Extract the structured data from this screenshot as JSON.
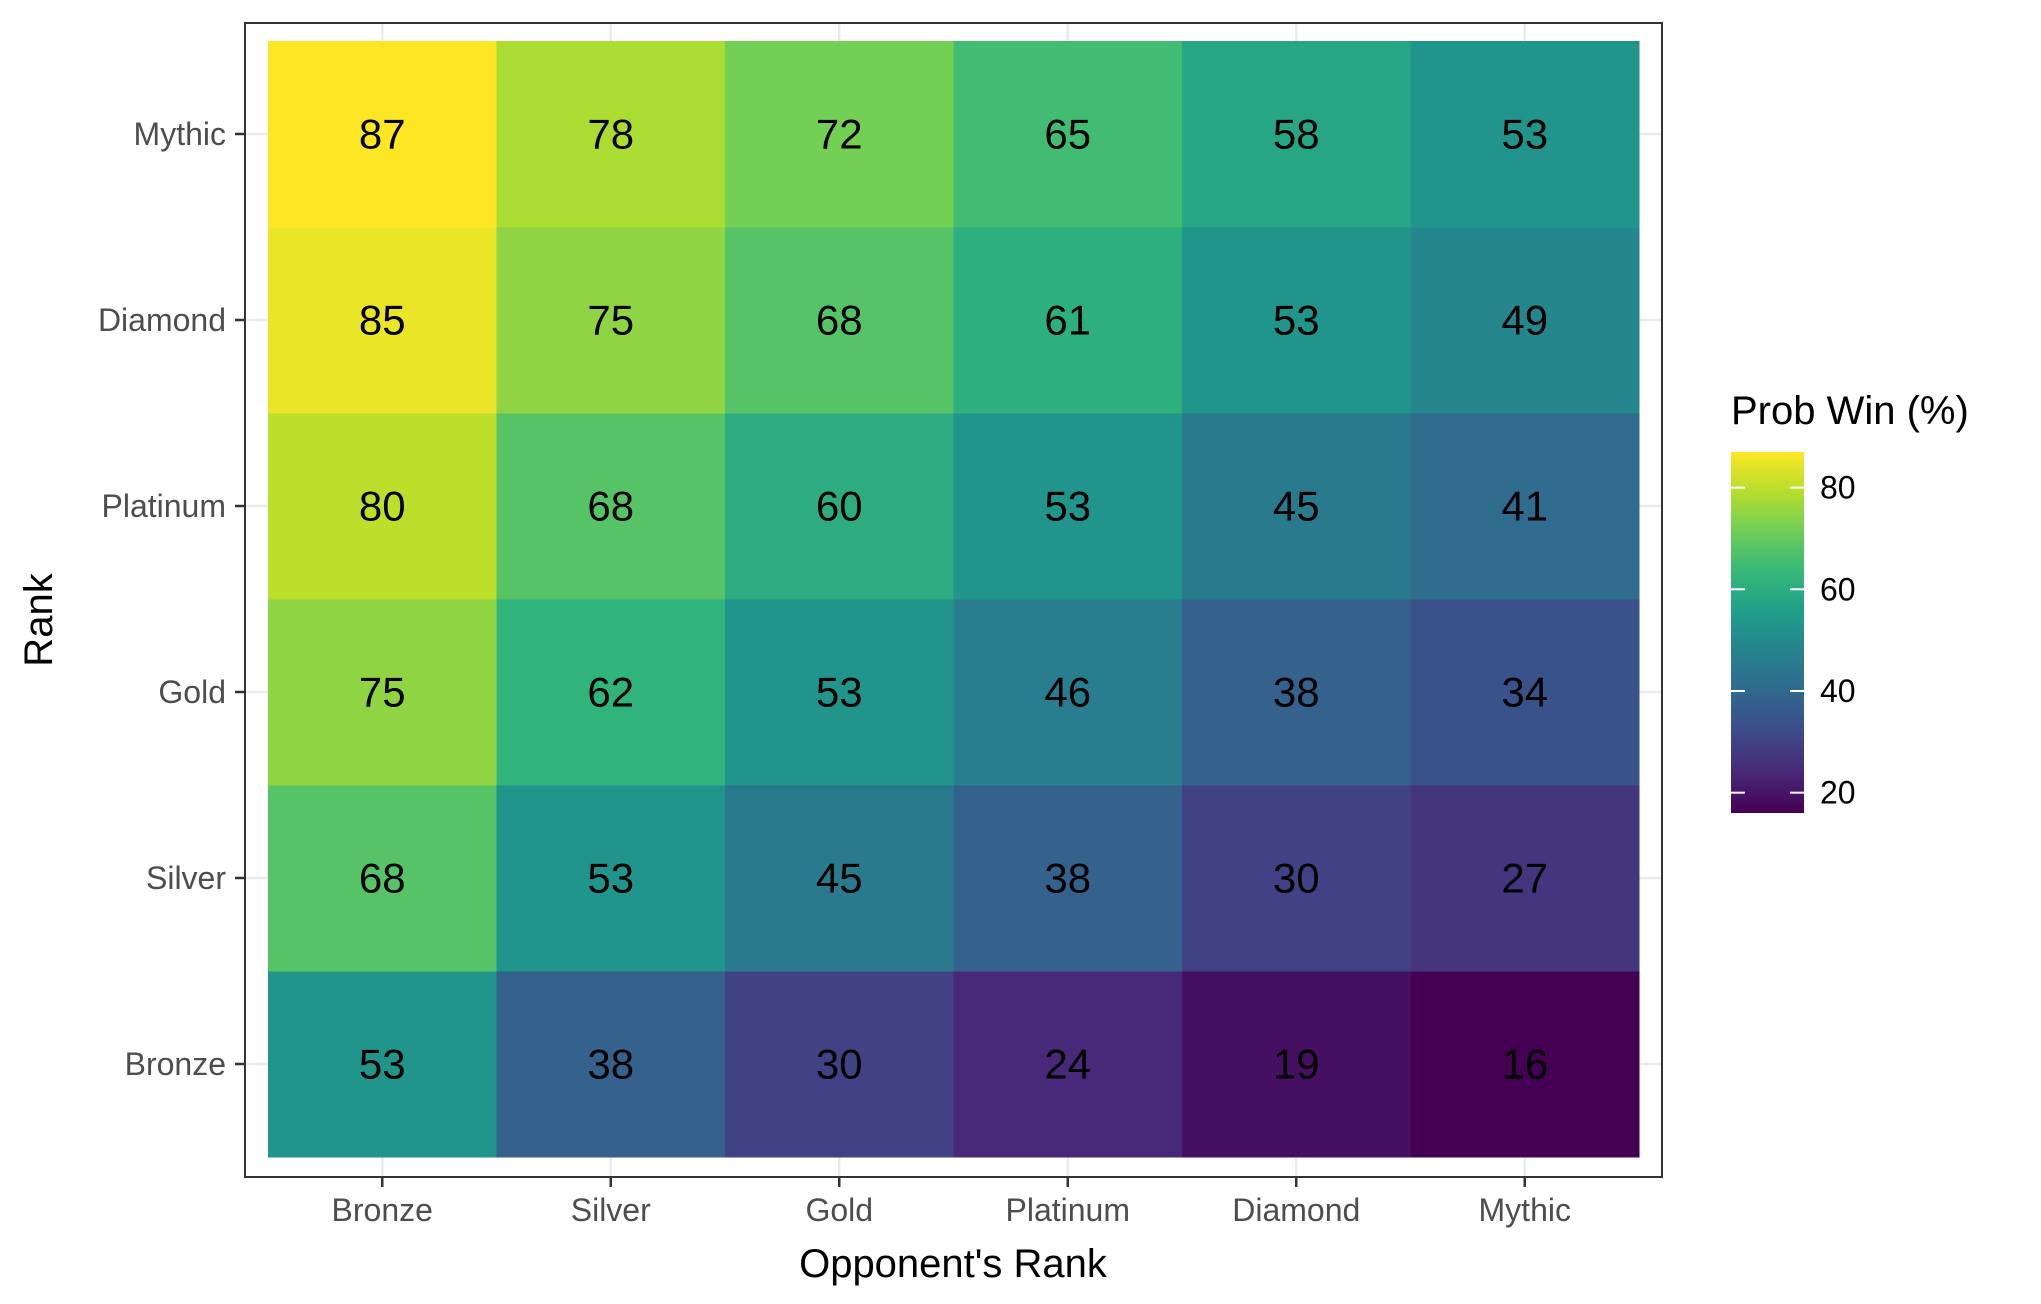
{
  "chart_data": {
    "type": "heatmap",
    "title": "",
    "xlabel": "Opponent's Rank",
    "ylabel": "Rank",
    "x_categories": [
      "Bronze",
      "Silver",
      "Gold",
      "Platinum",
      "Diamond",
      "Mythic"
    ],
    "y_categories": [
      "Bronze",
      "Silver",
      "Gold",
      "Platinum",
      "Diamond",
      "Mythic"
    ],
    "values": [
      [
        53,
        38,
        30,
        24,
        19,
        16
      ],
      [
        68,
        53,
        45,
        38,
        30,
        27
      ],
      [
        75,
        62,
        53,
        46,
        38,
        34
      ],
      [
        80,
        68,
        60,
        53,
        45,
        41
      ],
      [
        85,
        75,
        68,
        61,
        53,
        49
      ],
      [
        87,
        78,
        72,
        65,
        58,
        53
      ]
    ],
    "legend": {
      "title": "Prob Win (%)",
      "ticks": [
        20,
        40,
        60,
        80
      ],
      "range": [
        16,
        87
      ],
      "colormap": "viridis",
      "placement": "right"
    },
    "grid": true,
    "colors": {
      "viridis": [
        "#440154",
        "#482878",
        "#3E4A89",
        "#31688E",
        "#26828E",
        "#1F9E89",
        "#35B779",
        "#6DCD59",
        "#B4DE2C",
        "#FDE725"
      ]
    }
  }
}
